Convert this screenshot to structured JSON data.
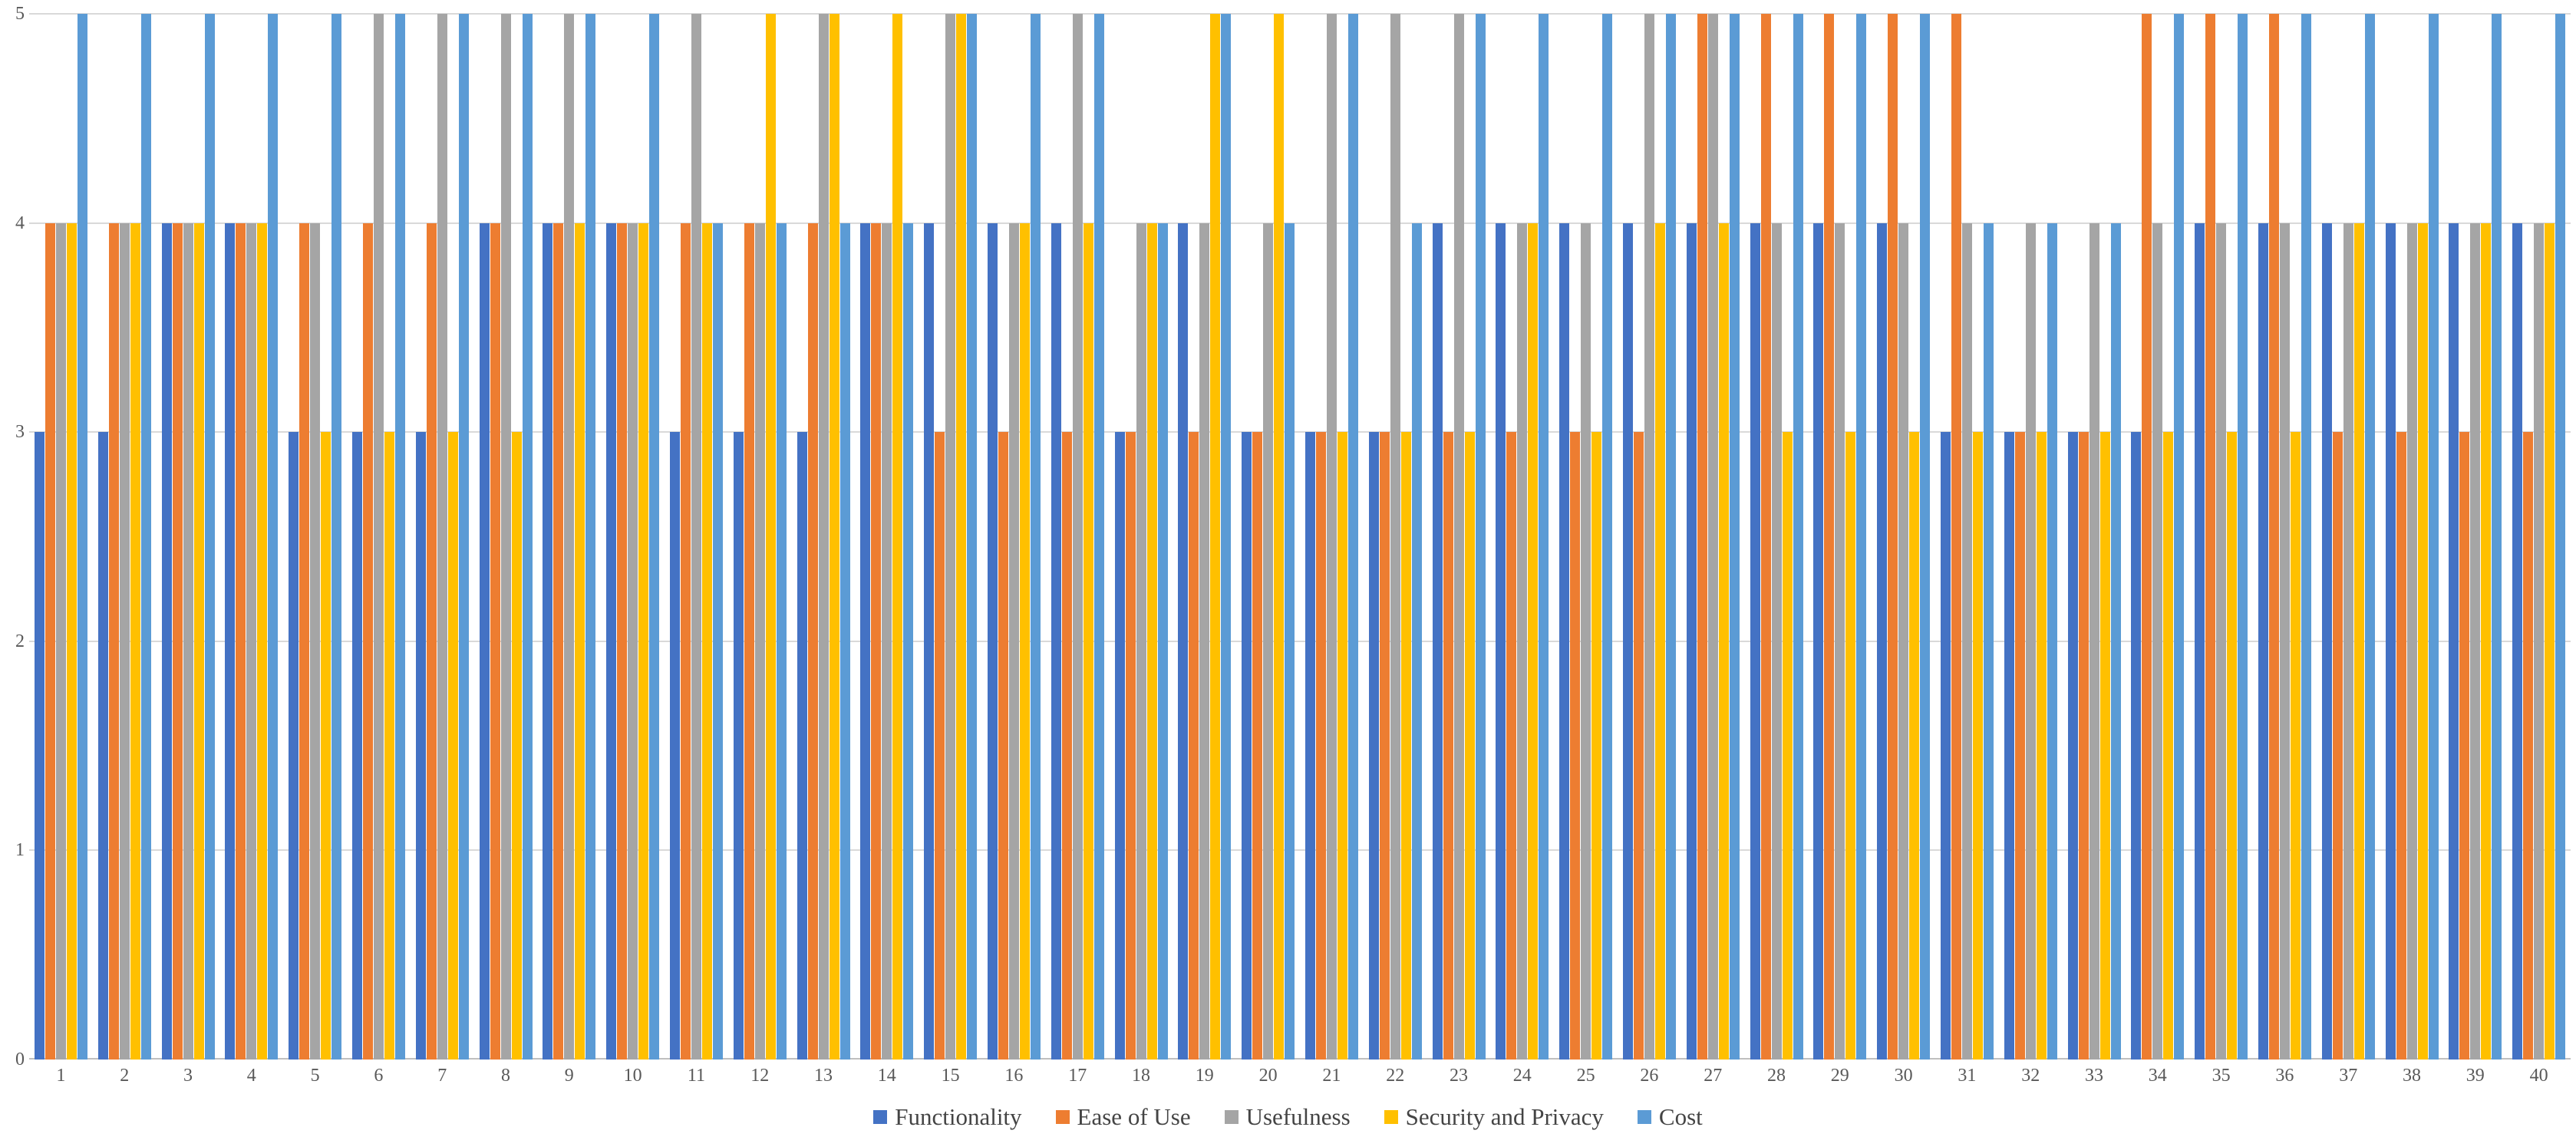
{
  "chart_data": {
    "type": "bar",
    "title": "",
    "categories": [
      "1",
      "2",
      "3",
      "4",
      "5",
      "6",
      "7",
      "8",
      "9",
      "10",
      "11",
      "12",
      "13",
      "14",
      "15",
      "16",
      "17",
      "18",
      "19",
      "20",
      "21",
      "22",
      "23",
      "24",
      "25",
      "26",
      "27",
      "28",
      "29",
      "30",
      "31",
      "32",
      "33",
      "34",
      "35",
      "36",
      "37",
      "38",
      "39",
      "40"
    ],
    "series": [
      {
        "name": "Functionality",
        "color": "#4472C4",
        "values": [
          3,
          3,
          4,
          4,
          3,
          3,
          3,
          4,
          4,
          4,
          3,
          3,
          3,
          4,
          4,
          4,
          4,
          3,
          4,
          3,
          3,
          3,
          4,
          4,
          4,
          4,
          4,
          4,
          4,
          4,
          3,
          3,
          3,
          3,
          4,
          4,
          4,
          4,
          4,
          4
        ]
      },
      {
        "name": "Ease of Use",
        "color": "#ED7D31",
        "values": [
          4,
          4,
          4,
          4,
          4,
          4,
          4,
          4,
          4,
          4,
          4,
          4,
          4,
          4,
          3,
          3,
          3,
          3,
          3,
          3,
          3,
          3,
          3,
          3,
          3,
          3,
          5,
          5,
          5,
          5,
          5,
          3,
          3,
          5,
          5,
          5,
          3,
          3,
          3,
          3
        ]
      },
      {
        "name": "Usefulness",
        "color": "#A5A5A5",
        "values": [
          4,
          4,
          4,
          4,
          4,
          5,
          5,
          5,
          5,
          4,
          5,
          4,
          5,
          4,
          5,
          4,
          5,
          4,
          4,
          4,
          5,
          5,
          5,
          4,
          4,
          5,
          5,
          4,
          4,
          4,
          4,
          4,
          4,
          4,
          4,
          4,
          4,
          4,
          4,
          4
        ]
      },
      {
        "name": "Security and Privacy",
        "color": "#FFC000",
        "values": [
          4,
          4,
          4,
          4,
          3,
          3,
          3,
          3,
          4,
          4,
          4,
          5,
          5,
          5,
          5,
          4,
          4,
          4,
          5,
          5,
          3,
          3,
          3,
          4,
          3,
          4,
          4,
          3,
          3,
          3,
          3,
          3,
          3,
          3,
          3,
          3,
          4,
          4,
          4,
          4
        ]
      },
      {
        "name": "Cost",
        "color": "#5B9BD5",
        "values": [
          5,
          5,
          5,
          5,
          5,
          5,
          5,
          5,
          5,
          5,
          4,
          4,
          4,
          4,
          5,
          5,
          5,
          4,
          5,
          4,
          5,
          4,
          5,
          5,
          5,
          5,
          5,
          5,
          5,
          5,
          4,
          4,
          4,
          5,
          5,
          5,
          5,
          5,
          5,
          5
        ]
      }
    ],
    "ylim": [
      0,
      5
    ],
    "yticks": [
      0,
      1,
      2,
      3,
      4,
      5
    ],
    "y_tick_labels": [
      "0",
      "1",
      "2",
      "3",
      "4",
      "5"
    ],
    "grid": true,
    "legend_position": "bottom",
    "gridline_color": "#D9D9D9",
    "axis_line_color": "#BFBFBF",
    "tick_label_color": "#595959",
    "legend_text_color": "#444444"
  }
}
